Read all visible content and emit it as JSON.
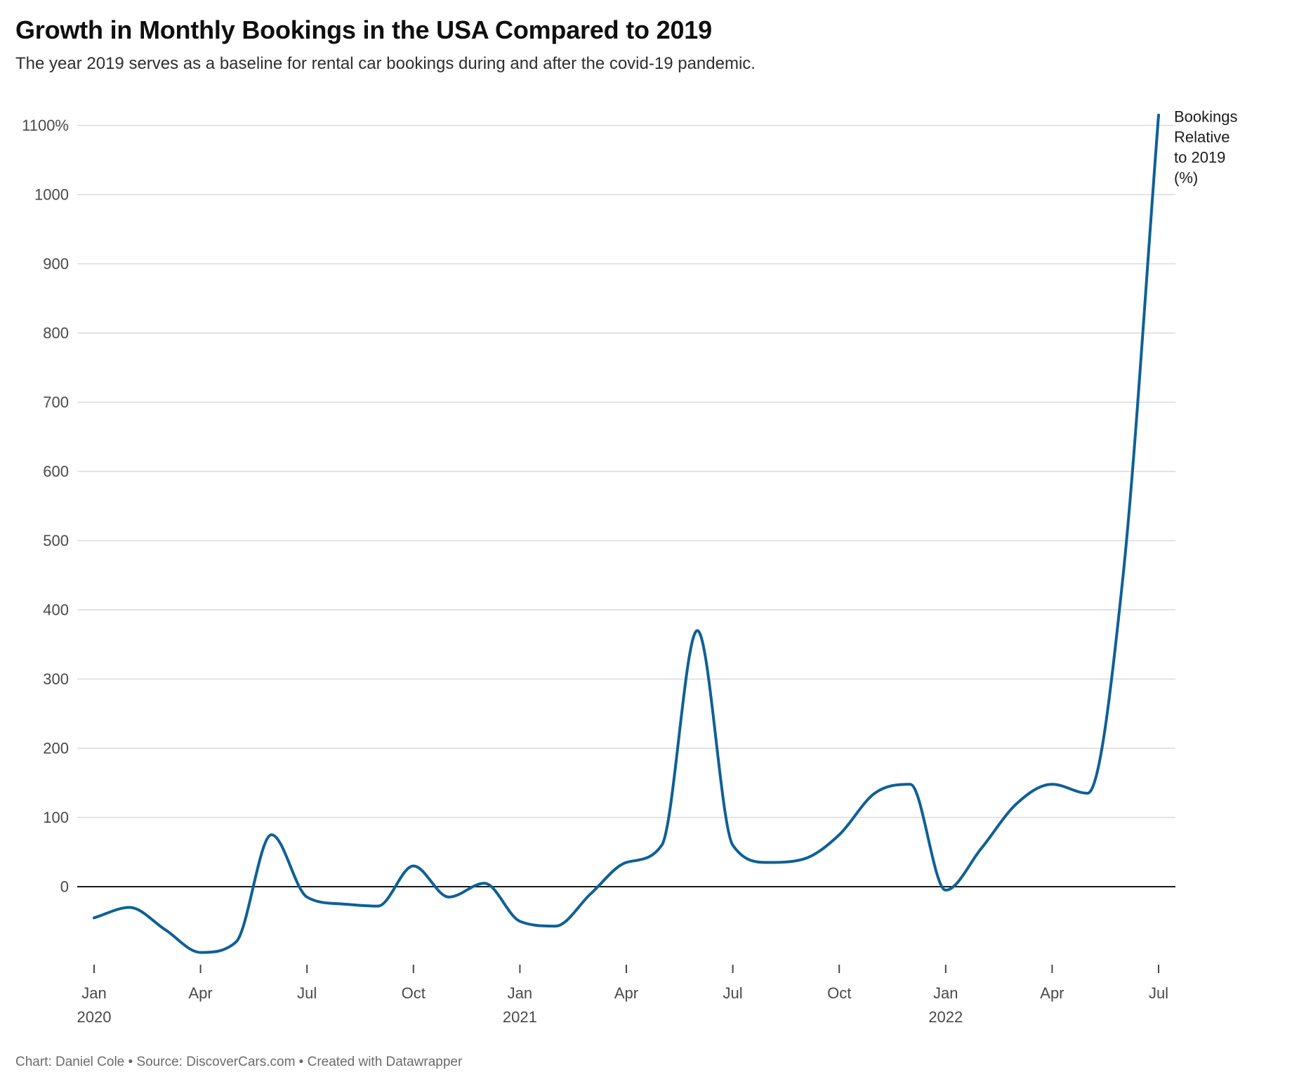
{
  "header": {
    "title": "Growth in Monthly Bookings in the USA Compared to 2019",
    "subtitle": "The year 2019 serves as a baseline for rental car bookings during and after the covid-19 pandemic."
  },
  "footer": {
    "credit": "Chart: Daniel Cole • Source: DiscoverCars.com • Created with Datawrapper"
  },
  "chart_data": {
    "type": "line",
    "title": "Growth in Monthly Bookings in the USA Compared to 2019",
    "xlabel": "",
    "ylabel": "Bookings Relative to 2019 (%)",
    "grid": true,
    "legend_position": "line-end-right",
    "ylim": [
      -140,
      1140
    ],
    "x": [
      "Jan 2020",
      "Feb 2020",
      "Mar 2020",
      "Apr 2020",
      "May 2020",
      "Jun 2020",
      "Jul 2020",
      "Aug 2020",
      "Sep 2020",
      "Oct 2020",
      "Nov 2020",
      "Dec 2020",
      "Jan 2021",
      "Feb 2021",
      "Mar 2021",
      "Apr 2021",
      "May 2021",
      "Jun 2021",
      "Jul 2021",
      "Aug 2021",
      "Sep 2021",
      "Oct 2021",
      "Nov 2021",
      "Dec 2021",
      "Jan 2022",
      "Feb 2022",
      "Mar 2022",
      "Apr 2022",
      "May 2022",
      "Jun 2022",
      "Jul 2022"
    ],
    "series": [
      {
        "name": "Bookings Relative to 2019 (%)",
        "values": [
          -45,
          -30,
          -62,
          -95,
          -80,
          75,
          -15,
          -25,
          -28,
          30,
          -15,
          5,
          -50,
          -57,
          -10,
          35,
          60,
          370,
          60,
          35,
          40,
          75,
          135,
          148,
          -5,
          55,
          120,
          148,
          135,
          450,
          1115
        ],
        "color": "#0e6096",
        "label_lines": [
          "Bookings",
          "Relative",
          "to 2019",
          "(%)"
        ]
      }
    ],
    "y_ticks": [
      {
        "value": 1100,
        "label": "1100%"
      },
      {
        "value": 1000,
        "label": "1000"
      },
      {
        "value": 900,
        "label": "900"
      },
      {
        "value": 800,
        "label": "800"
      },
      {
        "value": 700,
        "label": "700"
      },
      {
        "value": 600,
        "label": "600"
      },
      {
        "value": 500,
        "label": "500"
      },
      {
        "value": 400,
        "label": "400"
      },
      {
        "value": 300,
        "label": "300"
      },
      {
        "value": 200,
        "label": "200"
      },
      {
        "value": 100,
        "label": "100"
      },
      {
        "value": 0,
        "label": "0"
      }
    ],
    "x_ticks": [
      {
        "index": 0,
        "label": "Jan",
        "year": "2020"
      },
      {
        "index": 3,
        "label": "Apr"
      },
      {
        "index": 6,
        "label": "Jul"
      },
      {
        "index": 9,
        "label": "Oct"
      },
      {
        "index": 12,
        "label": "Jan",
        "year": "2021"
      },
      {
        "index": 15,
        "label": "Apr"
      },
      {
        "index": 18,
        "label": "Jul"
      },
      {
        "index": 21,
        "label": "Oct"
      },
      {
        "index": 24,
        "label": "Jan",
        "year": "2022"
      },
      {
        "index": 27,
        "label": "Apr"
      },
      {
        "index": 30,
        "label": "Jul"
      }
    ],
    "colors": {
      "line": "#0e6096",
      "grid": "#dadada",
      "zero_line": "#1a1a1a",
      "axis_text": "#494949"
    }
  }
}
